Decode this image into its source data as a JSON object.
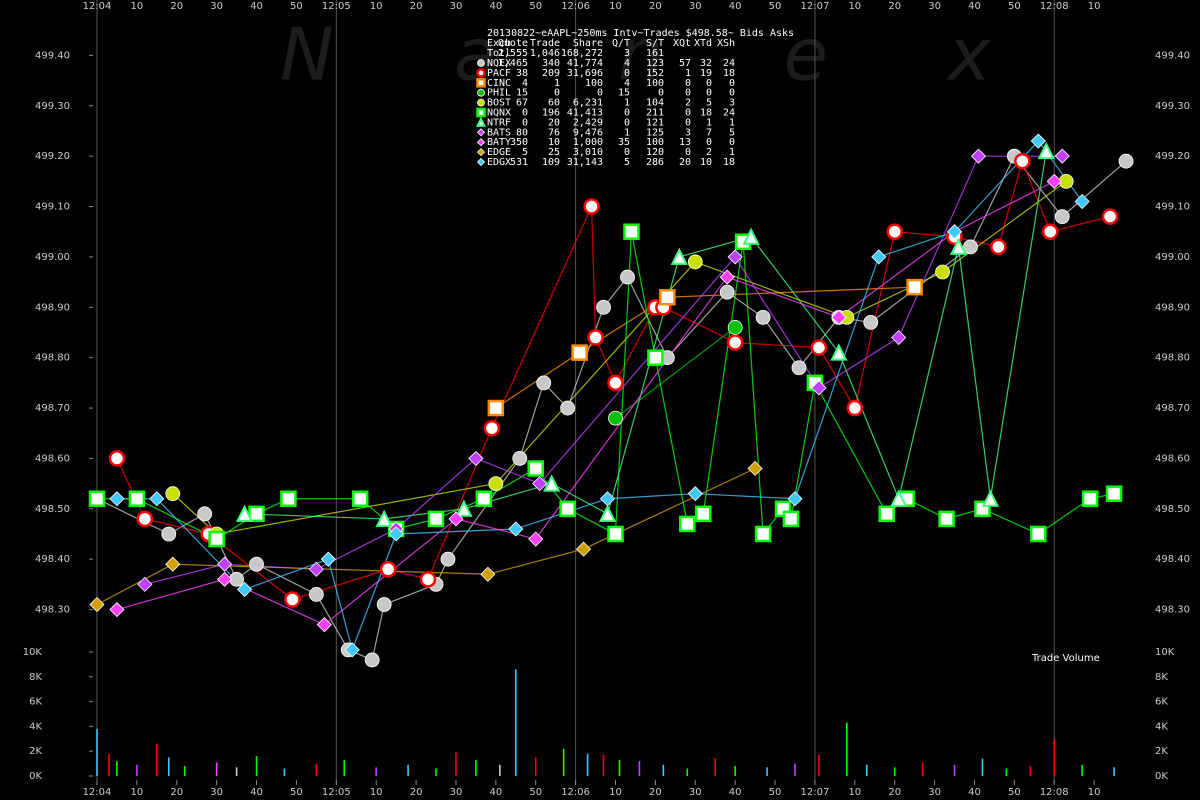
{
  "chart_data": [
    {
      "type": "scatter",
      "title": "20130822~eAAPL~250ms Intv~Trades $498.58~ Bids  Asks",
      "watermark": "Nanex",
      "columns": [
        "Exch",
        "Quote",
        "Trade",
        "Share",
        "Q/T",
        "S/T",
        "XQt",
        "XTd",
        "XSh"
      ],
      "total": [
        "Totl",
        "2,555",
        "1,046",
        "168,272",
        "3",
        "161"
      ],
      "xlim": [
        -1,
        261
      ],
      "xticks": [
        {
          "value": 0,
          "label": "12:04"
        },
        10,
        20,
        30,
        40,
        50,
        {
          "value": 60,
          "label": "12:05"
        },
        {
          "value": 70,
          "label": "10"
        },
        {
          "value": 80,
          "label": "20"
        },
        {
          "value": 90,
          "label": "30"
        },
        {
          "value": 100,
          "label": "40"
        },
        {
          "value": 110,
          "label": "50"
        },
        {
          "value": 120,
          "label": "12:06"
        },
        {
          "value": 130,
          "label": "10"
        },
        {
          "value": 140,
          "label": "20"
        },
        {
          "value": 150,
          "label": "30"
        },
        {
          "value": 160,
          "label": "40"
        },
        {
          "value": 170,
          "label": "50"
        },
        {
          "value": 180,
          "label": "12:07"
        },
        {
          "value": 190,
          "label": "10"
        },
        {
          "value": 200,
          "label": "20"
        },
        {
          "value": 210,
          "label": "30"
        },
        {
          "value": 220,
          "label": "40"
        },
        {
          "value": 230,
          "label": "50"
        },
        {
          "value": 240,
          "label": "12:08"
        },
        {
          "value": 250,
          "label": "10"
        }
      ],
      "ylim": [
        498.18,
        499.51
      ],
      "yticks": [
        {
          "value": 498.3,
          "label": "498.30"
        },
        {
          "value": 498.4,
          "label": "498.40"
        },
        {
          "value": 498.5,
          "label": "498.50"
        },
        {
          "value": 498.6,
          "label": "498.60"
        },
        {
          "value": 498.7,
          "label": "498.70"
        },
        {
          "value": 498.8,
          "label": "498.80"
        },
        {
          "value": 498.9,
          "label": "498.90"
        },
        {
          "value": 499,
          "label": "499.00"
        },
        {
          "value": 499.1,
          "label": "499.10"
        },
        {
          "value": 499.2,
          "label": "499.20"
        },
        {
          "value": 499.3,
          "label": "499.30"
        },
        {
          "value": 499.4,
          "label": "499.40"
        }
      ],
      "series": [
        {
          "name": "NQEX",
          "color": "#c8c8c8",
          "marker": "circle",
          "stats": [
            "1,465",
            "340",
            "41,774",
            "4",
            "123",
            "57",
            "32",
            "24"
          ],
          "x": [
            0,
            18,
            27,
            35,
            40,
            55,
            63,
            69,
            72,
            85,
            88,
            106,
            112,
            118,
            127,
            133,
            143,
            158,
            167,
            176,
            186,
            194,
            219,
            230,
            242,
            258
          ],
          "values": [
            498.52,
            498.45,
            498.49,
            498.36,
            498.39,
            498.33,
            498.22,
            498.2,
            498.31,
            498.35,
            498.4,
            498.6,
            498.75,
            498.7,
            498.9,
            498.96,
            498.8,
            498.93,
            498.88,
            498.78,
            498.88,
            498.87,
            499.02,
            499.2,
            499.08,
            499.19
          ]
        },
        {
          "name": "PACF",
          "color": "#ff0000",
          "marker": "ring",
          "stats": [
            "38",
            "209",
            "31,696",
            "0",
            "152",
            "1",
            "19",
            "18"
          ],
          "x": [
            5,
            12,
            28,
            49,
            73,
            83,
            99,
            124,
            125,
            130,
            140,
            142,
            160,
            181,
            190,
            200,
            215,
            226,
            232,
            239,
            254
          ],
          "values": [
            498.6,
            498.48,
            498.45,
            498.32,
            498.38,
            498.36,
            498.66,
            499.1,
            498.84,
            498.75,
            498.9,
            498.9,
            498.83,
            498.82,
            498.7,
            499.05,
            499.04,
            499.02,
            499.19,
            499.05,
            499.08
          ]
        },
        {
          "name": "CINC",
          "color": "#ff8c00",
          "marker": "square",
          "stats": [
            "4",
            "1",
            "100",
            "4",
            "100",
            "0",
            "0",
            "0"
          ],
          "x": [
            100,
            121,
            143,
            205
          ],
          "values": [
            498.7,
            498.81,
            498.92,
            498.94
          ]
        },
        {
          "name": "PHIL",
          "color": "#00c000",
          "marker": "circle",
          "stats": [
            "15",
            "0",
            "0",
            "15",
            "0",
            "0",
            "0",
            "0"
          ],
          "x": [
            130,
            160
          ],
          "values": [
            498.68,
            498.86
          ]
        },
        {
          "name": "BOST",
          "color": "#c8e000",
          "marker": "circle",
          "stats": [
            "67",
            "60",
            "6,231",
            "1",
            "104",
            "2",
            "5",
            "3"
          ],
          "x": [
            19,
            30,
            100,
            150,
            188,
            212,
            243
          ],
          "values": [
            498.53,
            498.45,
            498.55,
            498.99,
            498.88,
            498.97,
            499.15
          ]
        },
        {
          "name": "NQNX",
          "color": "#00ff00",
          "marker": "square",
          "stats": [
            "0",
            "196",
            "41,413",
            "0",
            "211",
            "0",
            "18",
            "24"
          ],
          "x": [
            0,
            10,
            30,
            40,
            48,
            66,
            75,
            85,
            97,
            110,
            118,
            130,
            134,
            140,
            148,
            152,
            162,
            167,
            172,
            174,
            180,
            198,
            203,
            213,
            222,
            236,
            249,
            255
          ],
          "values": [
            498.52,
            498.52,
            498.44,
            498.49,
            498.52,
            498.52,
            498.46,
            498.48,
            498.52,
            498.58,
            498.5,
            498.45,
            499.05,
            498.8,
            498.47,
            498.49,
            499.03,
            498.45,
            498.5,
            498.48,
            498.75,
            498.49,
            498.52,
            498.48,
            498.5,
            498.45,
            498.52,
            498.53
          ]
        },
        {
          "name": "NTRF",
          "color": "#40ff80",
          "marker": "triangle",
          "stats": [
            "0",
            "20",
            "2,429",
            "0",
            "121",
            "0",
            "1",
            "1"
          ],
          "x": [
            37,
            72,
            92,
            114,
            128,
            146,
            164,
            186,
            201,
            216,
            224,
            238
          ],
          "values": [
            498.49,
            498.48,
            498.5,
            498.55,
            498.49,
            499,
            499.04,
            498.81,
            498.52,
            499.02,
            498.52,
            499.21
          ]
        },
        {
          "name": "BATS",
          "color": "#c040ff",
          "marker": "diamond",
          "stats": [
            "80",
            "76",
            "9,476",
            "1",
            "125",
            "3",
            "7",
            "5"
          ],
          "x": [
            12,
            32,
            55,
            75,
            95,
            111,
            160,
            181,
            201,
            221,
            242
          ],
          "values": [
            498.35,
            498.39,
            498.38,
            498.46,
            498.6,
            498.55,
            499,
            498.74,
            498.84,
            499.2,
            499.2
          ]
        },
        {
          "name": "BATY",
          "color": "#ff40ff",
          "marker": "diamond",
          "stats": [
            "350",
            "10",
            "1,000",
            "35",
            "100",
            "13",
            "0",
            "0"
          ],
          "x": [
            5,
            32,
            57,
            90,
            110,
            158,
            186,
            215,
            240
          ],
          "values": [
            498.3,
            498.36,
            498.27,
            498.48,
            498.44,
            498.96,
            498.88,
            499.05,
            499.15
          ]
        },
        {
          "name": "EDGE",
          "color": "#d0a000",
          "marker": "diamond",
          "stats": [
            "5",
            "25",
            "3,010",
            "0",
            "120",
            "0",
            "2",
            "1"
          ],
          "x": [
            0,
            19,
            98,
            122,
            165
          ],
          "values": [
            498.31,
            498.39,
            498.37,
            498.42,
            498.58
          ]
        },
        {
          "name": "EDGX",
          "color": "#40c8ff",
          "marker": "diamond",
          "stats": [
            "531",
            "109",
            "31,143",
            "5",
            "286",
            "20",
            "10",
            "18"
          ],
          "x": [
            5,
            15,
            37,
            58,
            64,
            75,
            105,
            128,
            150,
            175,
            196,
            215,
            236,
            247
          ],
          "values": [
            498.52,
            498.52,
            498.34,
            498.4,
            498.22,
            498.45,
            498.46,
            498.52,
            498.53,
            498.52,
            499,
            499.05,
            499.23,
            499.11
          ]
        }
      ]
    },
    {
      "type": "bar",
      "title": "Trade Volume",
      "ylim": [
        0,
        10000
      ],
      "yticks": [
        {
          "value": 0,
          "label": "0K"
        },
        {
          "value": 2000,
          "label": "2K"
        },
        {
          "value": 4000,
          "label": "4K"
        },
        {
          "value": 6000,
          "label": "6K"
        },
        {
          "value": 8000,
          "label": "8K"
        },
        {
          "value": 10000,
          "label": "10K"
        }
      ],
      "x": [
        0,
        3,
        5,
        10,
        15,
        18,
        22,
        30,
        35,
        40,
        47,
        55,
        62,
        70,
        78,
        85,
        90,
        95,
        101,
        105,
        110,
        117,
        123,
        127,
        131,
        136,
        142,
        148,
        155,
        160,
        168,
        175,
        181,
        188,
        193,
        200,
        207,
        215,
        222,
        228,
        234,
        240,
        247,
        255
      ],
      "values": [
        3800,
        1800,
        1200,
        900,
        2600,
        1500,
        800,
        1100,
        700,
        1600,
        600,
        1000,
        1300,
        700,
        900,
        600,
        1900,
        1300,
        900,
        8600,
        1500,
        2200,
        1800,
        1700,
        1300,
        1200,
        900,
        600,
        1400,
        800,
        700,
        1000,
        1700,
        4300,
        900,
        700,
        1100,
        900,
        1400,
        600,
        800,
        3000,
        900,
        700
      ],
      "colors": [
        "#40c8ff",
        "#ff0000",
        "#00ff00",
        "#c040ff",
        "#ff0000",
        "#40c8ff",
        "#00ff00",
        "#ff40ff",
        "#c8c8c8",
        "#00ff00",
        "#40c8ff",
        "#ff0000",
        "#00ff00",
        "#c040ff",
        "#40c8ff",
        "#00ff00",
        "#ff0000",
        "#00ff00",
        "#c8c8c8",
        "#40c8ff",
        "#ff0000",
        "#00ff00",
        "#40c8ff",
        "#ff0000",
        "#00ff00",
        "#c040ff",
        "#40c8ff",
        "#00ff00",
        "#ff0000",
        "#00ff00",
        "#40c8ff",
        "#c040ff",
        "#ff0000",
        "#00ff00",
        "#40c8ff",
        "#00ff00",
        "#ff0000",
        "#c040ff",
        "#40c8ff",
        "#00ff00",
        "#ff0000",
        "#ff0000",
        "#00ff00",
        "#40c8ff"
      ]
    }
  ]
}
